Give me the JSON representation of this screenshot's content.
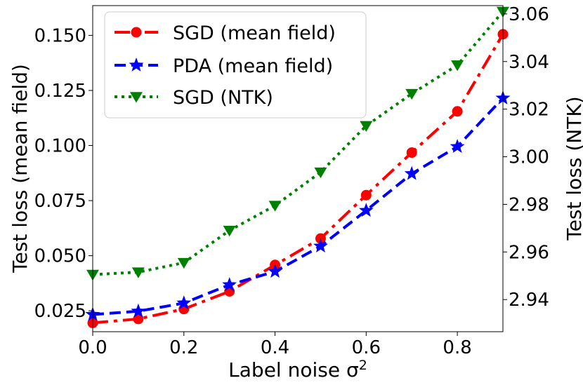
{
  "chart_data": {
    "type": "line",
    "xlabel": "Label noise σ",
    "xlabel_superscript": "2",
    "ylabel_left": "Test loss (mean field)",
    "ylabel_right": "Test loss (NTK)",
    "xlim": [
      0.0,
      0.9
    ],
    "ylim_left": [
      0.0155,
      0.1635
    ],
    "ylim_right": [
      2.9265,
      3.0635
    ],
    "x_ticks": [
      0.0,
      0.2,
      0.4,
      0.6,
      0.8
    ],
    "x_tick_labels": [
      "0.0",
      "0.2",
      "0.4",
      "0.6",
      "0.8"
    ],
    "y_ticks_left": [
      0.025,
      0.05,
      0.075,
      0.1,
      0.125,
      0.15
    ],
    "y_tick_labels_left": [
      "0.025",
      "0.050",
      "0.075",
      "0.100",
      "0.125",
      "0.150"
    ],
    "y_ticks_right": [
      2.94,
      2.96,
      2.98,
      3.0,
      3.02,
      3.04,
      3.06
    ],
    "y_tick_labels_right": [
      "2.94",
      "2.96",
      "2.98",
      "3.00",
      "3.02",
      "3.04",
      "3.06"
    ],
    "legend_position": "top-left",
    "series": [
      {
        "name": "SGD (mean field)",
        "axis": "left",
        "color": "#ff0000",
        "line_style": "dashdot",
        "marker": "circle",
        "x": [
          0.0,
          0.1,
          0.2,
          0.3,
          0.4,
          0.5,
          0.6,
          0.7,
          0.8,
          0.9
        ],
        "values": [
          0.0195,
          0.0213,
          0.0258,
          0.0338,
          0.0458,
          0.0578,
          0.0775,
          0.0968,
          0.1155,
          0.1505
        ]
      },
      {
        "name": "PDA (mean field)",
        "axis": "left",
        "color": "#0000ff",
        "line_style": "dashed",
        "marker": "star",
        "x": [
          0.0,
          0.1,
          0.2,
          0.3,
          0.4,
          0.5,
          0.6,
          0.7,
          0.8,
          0.9
        ],
        "values": [
          0.0233,
          0.0248,
          0.0285,
          0.0368,
          0.0428,
          0.0543,
          0.0705,
          0.0872,
          0.0995,
          0.1215
        ]
      },
      {
        "name": "SGD (NTK)",
        "axis": "right",
        "color": "#008000",
        "line_style": "dotted",
        "marker": "triangle-down",
        "x": [
          0.0,
          0.1,
          0.2,
          0.3,
          0.4,
          0.5,
          0.6,
          0.7,
          0.8,
          0.9
        ],
        "values": [
          2.9505,
          2.9515,
          2.9555,
          2.969,
          2.9795,
          2.9935,
          3.013,
          3.0265,
          3.0385,
          3.061
        ]
      }
    ]
  }
}
